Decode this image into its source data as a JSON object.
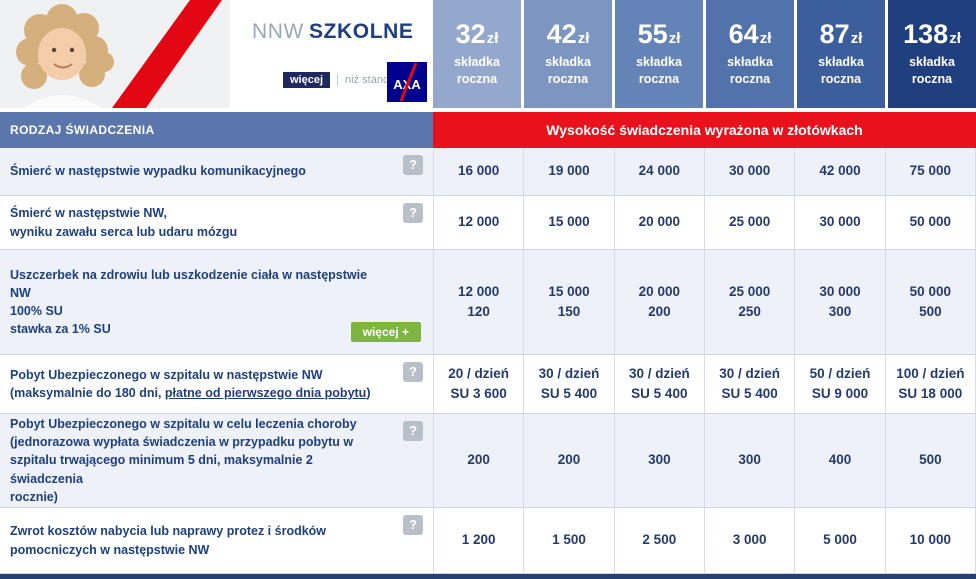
{
  "brand": {
    "title_gray": "NNW",
    "title_bold": "SZKOLNE",
    "tagline_primary": "więcej",
    "tagline_secondary": "niż standard",
    "logo_text": "AXA"
  },
  "colors": {
    "axa_blue": "#00008f",
    "axa_red": "#e30613",
    "navy_text": "#1e3f7f",
    "section_header_bg": "#5b76ab",
    "amount_header_bg": "#e8111c",
    "more_button_green": "#7db53e"
  },
  "plans": [
    {
      "amount": "32",
      "unit": "zł",
      "label_line1": "składka",
      "label_line2": "roczna",
      "color": "#93a8cc"
    },
    {
      "amount": "42",
      "unit": "zł",
      "label_line1": "składka",
      "label_line2": "roczna",
      "color": "#7d95c1"
    },
    {
      "amount": "55",
      "unit": "zł",
      "label_line1": "składka",
      "label_line2": "roczna",
      "color": "#6484b7"
    },
    {
      "amount": "64",
      "unit": "zł",
      "label_line1": "składka",
      "label_line2": "roczna",
      "color": "#5172ab"
    },
    {
      "amount": "87",
      "unit": "zł",
      "label_line1": "składka",
      "label_line2": "roczna",
      "color": "#3c5e9d"
    },
    {
      "amount": "138",
      "unit": "zł",
      "label_line1": "składka",
      "label_line2": "roczna",
      "color": "#1f3f7e"
    }
  ],
  "table_header": {
    "left": "RODZAJ ŚWIADCZENIA",
    "right": "Wysokość świadczenia wyrażona w złotówkach",
    "right_bg": "#e8111c"
  },
  "help_icon": "?",
  "rows": [
    {
      "lines": [
        "Śmierć w następstwie wypadku komunikacyjnego"
      ],
      "has_help": true,
      "values": [
        [
          "16 000"
        ],
        [
          "19 000"
        ],
        [
          "24 000"
        ],
        [
          "30 000"
        ],
        [
          "42 000"
        ],
        [
          "75 000"
        ]
      ]
    },
    {
      "lines": [
        "Śmierć w następstwie NW,",
        "wyniku zawału serca lub udaru mózgu"
      ],
      "has_help": true,
      "values": [
        [
          "12 000"
        ],
        [
          "15 000"
        ],
        [
          "20 000"
        ],
        [
          "25 000"
        ],
        [
          "30 000"
        ],
        [
          "50 000"
        ]
      ]
    },
    {
      "lines": [
        "Uszczerbek na zdrowiu lub uszkodzenie ciała w następstwie NW",
        "100% SU",
        "stawka za 1% SU"
      ],
      "has_help": false,
      "more_button": "więcej +",
      "values": [
        [
          "12 000",
          "120"
        ],
        [
          "15 000",
          "150"
        ],
        [
          "20 000",
          "200"
        ],
        [
          "25 000",
          "250"
        ],
        [
          "30 000",
          "300"
        ],
        [
          "50 000",
          "500"
        ]
      ]
    },
    {
      "lines": [
        "Pobyt Ubezpieczonego w szpitalu w następstwie NW"
      ],
      "line2_prefix": "(maksymalnie do 180 dni, ",
      "line2_link": "płatne od pierwszego dnia pobytu",
      "line2_suffix": ")",
      "has_help": true,
      "values": [
        [
          "20 / dzień",
          "SU 3 600"
        ],
        [
          "30 / dzień",
          "SU 5 400"
        ],
        [
          "30 / dzień",
          "SU 5 400"
        ],
        [
          "30 / dzień",
          "SU 5 400"
        ],
        [
          "50 / dzień",
          "SU 9 000"
        ],
        [
          "100 / dzień",
          "SU 18 000"
        ]
      ]
    },
    {
      "lines": [
        "Pobyt Ubezpieczonego w szpitalu w celu leczenia choroby",
        "(jednorazowa wypłata świadczenia w przypadku pobytu w",
        "szpitalu trwającego minimum 5 dni, maksymalnie 2 świadczenia",
        "rocznie)"
      ],
      "has_help": true,
      "values": [
        [
          "200"
        ],
        [
          "200"
        ],
        [
          "300"
        ],
        [
          "300"
        ],
        [
          "400"
        ],
        [
          "500"
        ]
      ]
    },
    {
      "lines": [
        "Zwrot kosztów nabycia lub naprawy protez i środków",
        "pomocniczych w następstwie NW"
      ],
      "has_help": true,
      "values": [
        [
          "1 200"
        ],
        [
          "1 500"
        ],
        [
          "2 500"
        ],
        [
          "3 000"
        ],
        [
          "5 000"
        ],
        [
          "10 000"
        ]
      ]
    }
  ]
}
